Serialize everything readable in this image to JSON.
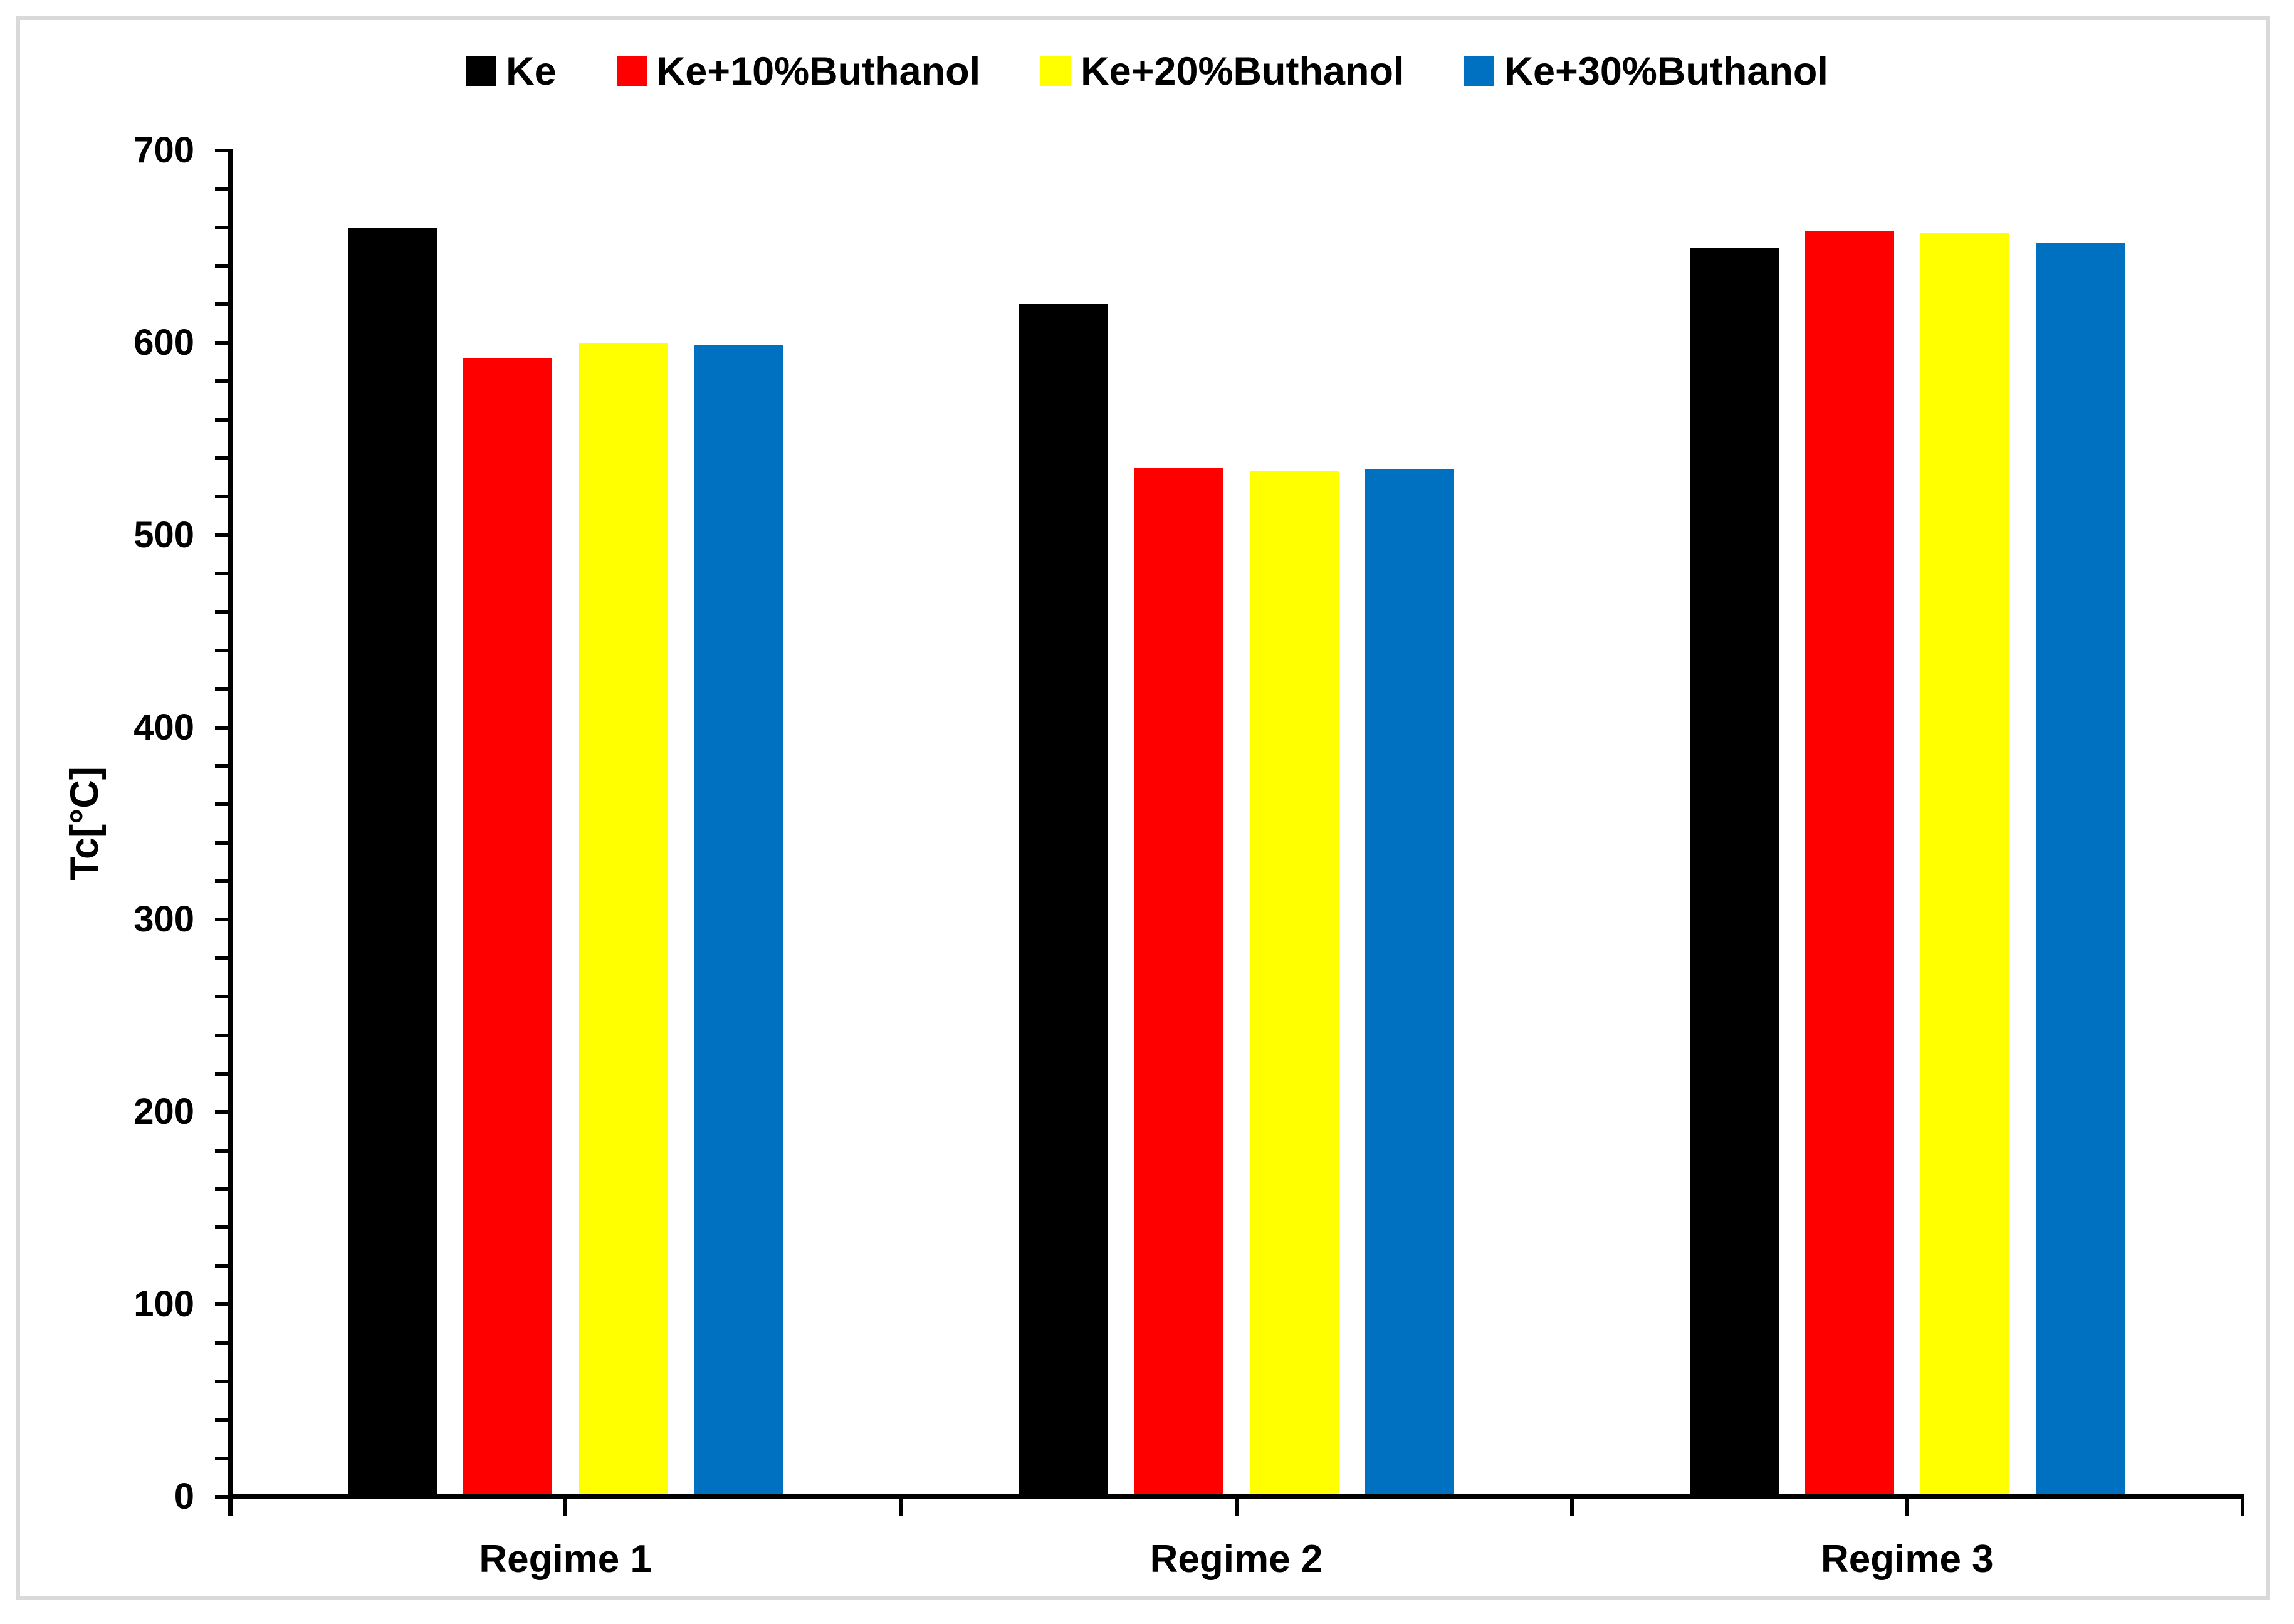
{
  "chart_data": {
    "type": "bar",
    "title": "",
    "xlabel": "",
    "ylabel": "Tc[°C]",
    "categories": [
      "Regime 1",
      "Regime 2",
      "Regime 3"
    ],
    "series": [
      {
        "name": "Ke",
        "color": "#000000",
        "values": [
          660,
          620,
          649
        ]
      },
      {
        "name": "Ke+10%Buthanol",
        "color": "#ff0000",
        "values": [
          592,
          535,
          658
        ]
      },
      {
        "name": "Ke+20%Buthanol",
        "color": "#ffff00",
        "values": [
          600,
          533,
          657
        ]
      },
      {
        "name": "Ke+30%Buthanol",
        "color": "#0070c0",
        "values": [
          599,
          534,
          652
        ]
      }
    ],
    "y_axis": {
      "min": 0,
      "max": 700,
      "major_step": 100,
      "minor_step": 20,
      "tick_labels": [
        "0",
        "100",
        "200",
        "300",
        "400",
        "500",
        "600",
        "700"
      ]
    },
    "legend_position": "top",
    "grid": false,
    "frame_color": "#d9d9d9",
    "axis_color": "#000000"
  }
}
